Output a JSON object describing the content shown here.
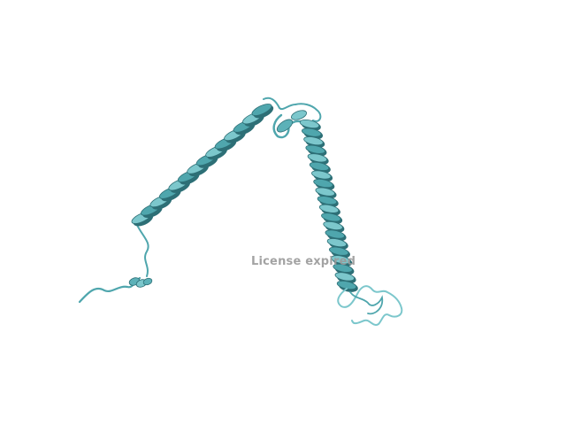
{
  "viewer": {
    "watermark_text": "License expired"
  },
  "colors": {
    "background": "#ffffff",
    "ribbon_light": "#7cc7cc",
    "ribbon_mid": "#4fa6ad",
    "ribbon_dark": "#2d6f76",
    "watermark": "#9a9a9a"
  }
}
